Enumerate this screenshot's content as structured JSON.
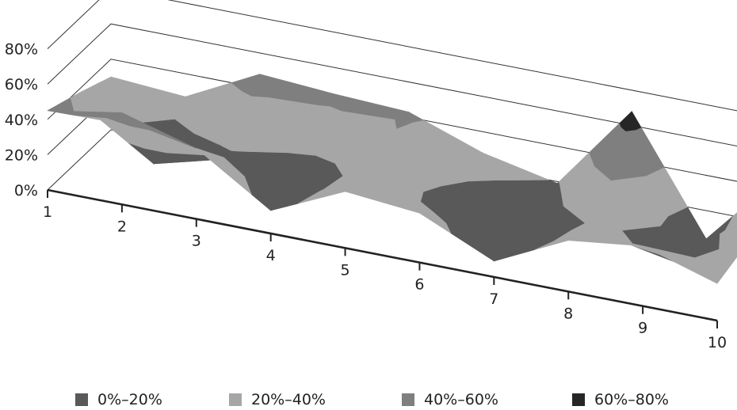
{
  "chart_data": {
    "type": "surface",
    "title": "",
    "xlabel": "",
    "ylabel": "",
    "x": [
      "1",
      "2",
      "3",
      "4",
      "5",
      "6",
      "7",
      "8",
      "9",
      "10"
    ],
    "y_ticks": [
      "0%",
      "20%",
      "40%",
      "60%",
      "80%"
    ],
    "ylim": [
      0,
      0.8
    ],
    "grid": true,
    "legend_position": "bottom",
    "series": [
      {
        "values": [
          0.45,
          0.52,
          0.4,
          0.13,
          0.32,
          0.28,
          0.09,
          0.29,
          0.34,
          0.21
        ]
      },
      {
        "values": [
          0.38,
          0.06,
          0.17,
          0.02,
          0.35,
          0.11,
          0.0,
          0.25,
          0.08,
          0.28
        ]
      },
      {
        "values": [
          0.3,
          0.27,
          0.48,
          0.45,
          0.43,
          0.28,
          0.19,
          0.68,
          0.04,
          0.48
        ]
      }
    ],
    "bands": [
      {
        "label": "0%–20%",
        "color": "#595959"
      },
      {
        "label": "20%–40%",
        "color": "#a6a6a6"
      },
      {
        "label": "40%–60%",
        "color": "#7f7f7f"
      },
      {
        "label": "60%–80%",
        "color": "#262626"
      }
    ]
  }
}
